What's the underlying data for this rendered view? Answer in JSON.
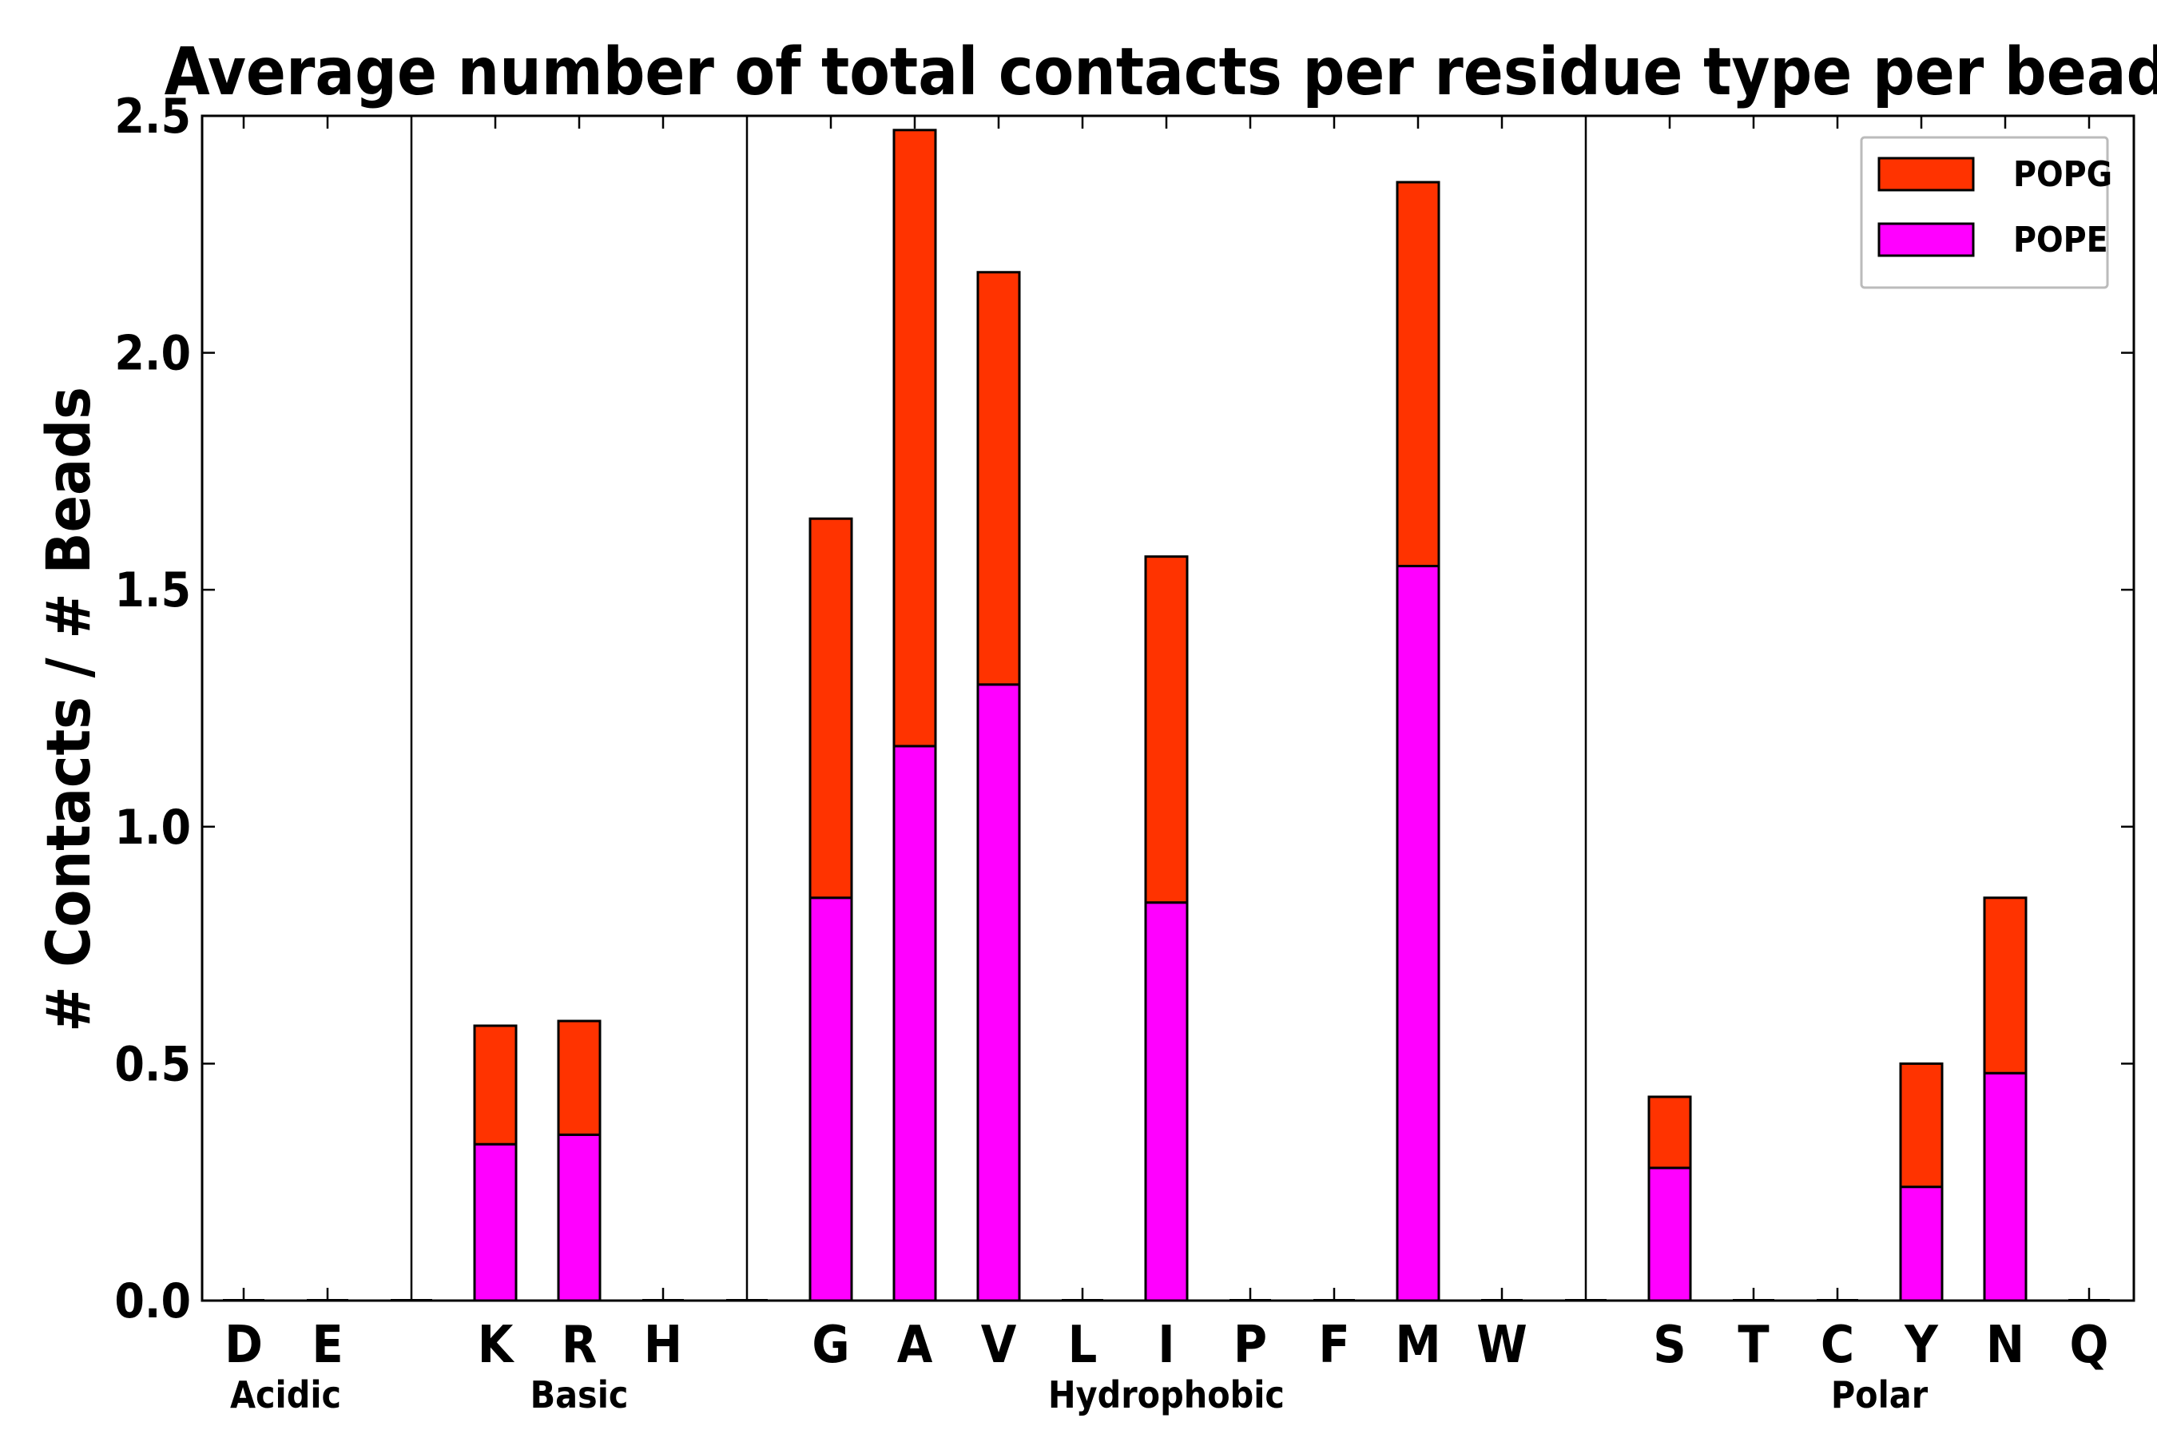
{
  "chart_data": {
    "type": "bar",
    "stacked": true,
    "title": "Average number of total contacts per residue type per bead",
    "xlabel": "",
    "ylabel": "# Contacts / # Beads",
    "ylim": [
      0,
      2.5
    ],
    "yticks": [
      "0.0",
      "0.5",
      "1.0",
      "1.5",
      "2.0",
      "2.5"
    ],
    "grid": false,
    "legend_position": "top-right",
    "categories": [
      "D",
      "E",
      "K",
      "R",
      "H",
      "G",
      "A",
      "V",
      "L",
      "I",
      "P",
      "F",
      "M",
      "W",
      "S",
      "T",
      "C",
      "Y",
      "N",
      "Q"
    ],
    "groups": [
      {
        "label": "Acidic",
        "members": [
          "D",
          "E"
        ]
      },
      {
        "label": "Basic",
        "members": [
          "K",
          "R",
          "H"
        ]
      },
      {
        "label": "Hydrophobic",
        "members": [
          "G",
          "A",
          "V",
          "L",
          "I",
          "P",
          "F",
          "M",
          "W"
        ]
      },
      {
        "label": "Polar",
        "members": [
          "S",
          "T",
          "C",
          "Y",
          "N",
          "Q"
        ]
      }
    ],
    "series": [
      {
        "name": "POPE",
        "color": "#ff00ff",
        "values": [
          0,
          0,
          0.33,
          0.35,
          0,
          0.85,
          1.17,
          1.3,
          0,
          0.84,
          0,
          0,
          1.55,
          0,
          0.28,
          0,
          0,
          0.24,
          0.48,
          0
        ]
      },
      {
        "name": "POPG",
        "color": "#ff3300",
        "values": [
          0,
          0,
          0.25,
          0.24,
          0,
          0.8,
          1.3,
          0.87,
          0,
          0.73,
          0,
          0,
          0.81,
          0,
          0.15,
          0,
          0,
          0.26,
          0.37,
          0
        ]
      }
    ],
    "legend_order": [
      "POPG",
      "POPE"
    ]
  }
}
